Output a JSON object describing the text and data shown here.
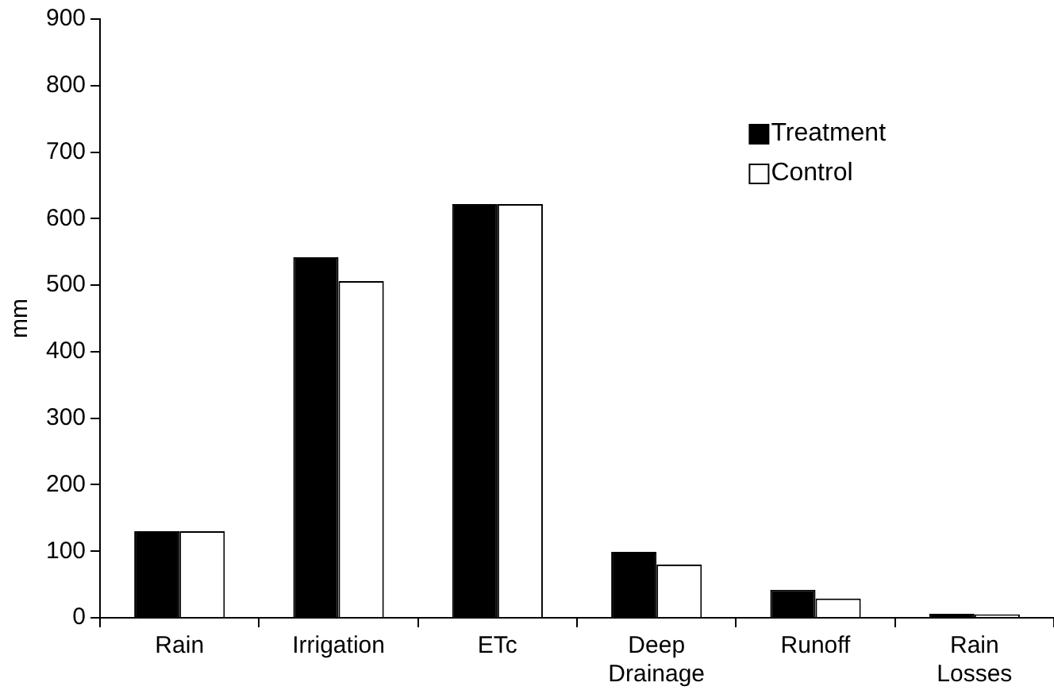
{
  "chart_data": {
    "type": "bar",
    "ylabel": "mm",
    "categories": [
      "Rain",
      "Irrigation",
      "ETc",
      "Deep Drainage",
      "Runoff",
      "Rain Losses"
    ],
    "series": [
      {
        "name": "Treatment",
        "color": "#000000",
        "values": [
          130,
          542,
          622,
          99,
          42,
          6
        ]
      },
      {
        "name": "Control",
        "color": "#ffffff",
        "values": [
          130,
          506,
          622,
          80,
          29,
          5
        ]
      }
    ],
    "ylim": [
      0,
      900
    ],
    "yticks": [
      0,
      100,
      200,
      300,
      400,
      500,
      600,
      700,
      800,
      900
    ],
    "grid": false,
    "legend": "top right"
  }
}
